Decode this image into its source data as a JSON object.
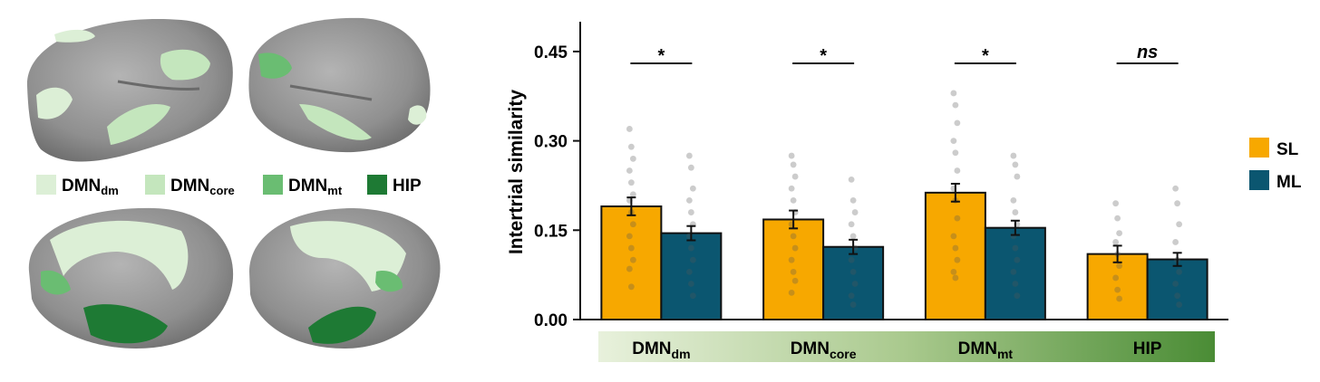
{
  "brain_legend": [
    {
      "main": "DMN",
      "sub": "dm",
      "color": "#dcefd6"
    },
    {
      "main": "DMN",
      "sub": "core",
      "color": "#c4e6bd"
    },
    {
      "main": "DMN",
      "sub": "mt",
      "color": "#6abd72"
    },
    {
      "main": "HIP",
      "sub": "",
      "color": "#1e7a34"
    }
  ],
  "chart_data": {
    "type": "bar",
    "ylabel": "Intertrial similarity",
    "ylim": [
      0,
      0.5
    ],
    "yticks": [
      "0.00",
      "0.15",
      "0.30",
      "0.45"
    ],
    "categories": [
      {
        "main": "DMN",
        "sub": "dm"
      },
      {
        "main": "DMN",
        "sub": "core"
      },
      {
        "main": "DMN",
        "sub": "mt"
      },
      {
        "main": "HIP",
        "sub": ""
      }
    ],
    "series": [
      {
        "name": "SL",
        "color": "#f7a800",
        "values": [
          0.19,
          0.168,
          0.213,
          0.11
        ],
        "errors": [
          0.015,
          0.015,
          0.015,
          0.014
        ],
        "points": [
          [
            0.32,
            0.29,
            0.27,
            0.25,
            0.23,
            0.21,
            0.2,
            0.18,
            0.16,
            0.14,
            0.12,
            0.1,
            0.085,
            0.055
          ],
          [
            0.275,
            0.26,
            0.24,
            0.22,
            0.2,
            0.18,
            0.16,
            0.14,
            0.12,
            0.1,
            0.08,
            0.065,
            0.045
          ],
          [
            0.38,
            0.36,
            0.33,
            0.3,
            0.28,
            0.25,
            0.22,
            0.2,
            0.17,
            0.14,
            0.12,
            0.1,
            0.08,
            0.07
          ],
          [
            0.195,
            0.17,
            0.145,
            0.13,
            0.11,
            0.09,
            0.07,
            0.05,
            0.035
          ]
        ]
      },
      {
        "name": "ML",
        "color": "#0b5670",
        "values": [
          0.145,
          0.122,
          0.154,
          0.101
        ],
        "errors": [
          0.012,
          0.012,
          0.012,
          0.011
        ],
        "points": [
          [
            0.275,
            0.255,
            0.22,
            0.2,
            0.18,
            0.16,
            0.14,
            0.12,
            0.1,
            0.08,
            0.06,
            0.04
          ],
          [
            0.235,
            0.2,
            0.18,
            0.16,
            0.14,
            0.12,
            0.1,
            0.08,
            0.06,
            0.04,
            0.025
          ],
          [
            0.275,
            0.26,
            0.24,
            0.2,
            0.18,
            0.16,
            0.14,
            0.12,
            0.1,
            0.08,
            0.06,
            0.04
          ],
          [
            0.22,
            0.195,
            0.16,
            0.13,
            0.1,
            0.08,
            0.06,
            0.04,
            0.025
          ]
        ]
      }
    ],
    "significance": [
      "*",
      "*",
      "*",
      "ns"
    ],
    "legend": [
      {
        "label": "SL",
        "color": "#f7a800"
      },
      {
        "label": "ML",
        "color": "#0b5670"
      }
    ],
    "legend_position": "right",
    "grid": false
  }
}
